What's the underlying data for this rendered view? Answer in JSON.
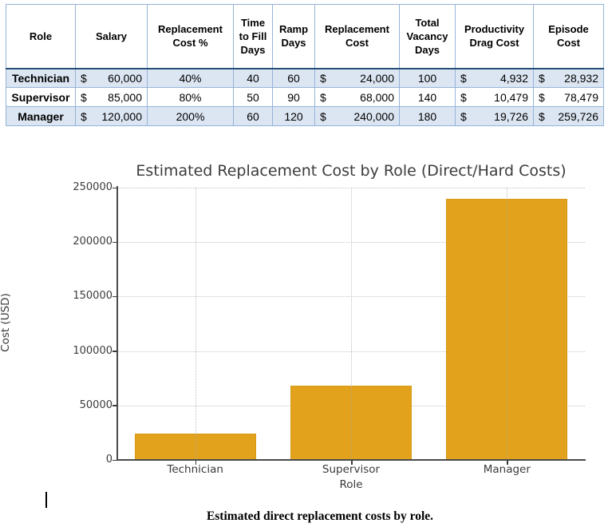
{
  "table": {
    "headers": [
      "Role",
      "Salary",
      "Replacement Cost %",
      "Time to Fill Days",
      "Ramp Days",
      "Replacement Cost",
      "Total Vacancy Days",
      "Productivity Drag Cost",
      "Episode Cost"
    ],
    "rows": [
      {
        "role": "Technician",
        "salary_sym": "$",
        "salary": "60,000",
        "pct": "40%",
        "fill_days": "40",
        "ramp_days": "60",
        "repl_sym": "$",
        "repl_cost": "24,000",
        "vacancy_days": "100",
        "drag_sym": "$",
        "drag_cost": "4,932",
        "episode_sym": "$",
        "episode_cost": "28,932"
      },
      {
        "role": "Supervisor",
        "salary_sym": "$",
        "salary": "85,000",
        "pct": "80%",
        "fill_days": "50",
        "ramp_days": "90",
        "repl_sym": "$",
        "repl_cost": "68,000",
        "vacancy_days": "140",
        "drag_sym": "$",
        "drag_cost": "10,479",
        "episode_sym": "$",
        "episode_cost": "78,479"
      },
      {
        "role": "Manager",
        "salary_sym": "$",
        "salary": "120,000",
        "pct": "200%",
        "fill_days": "60",
        "ramp_days": "120",
        "repl_sym": "$",
        "repl_cost": "240,000",
        "vacancy_days": "180",
        "drag_sym": "$",
        "drag_cost": "19,726",
        "episode_sym": "$",
        "episode_cost": "259,726"
      }
    ]
  },
  "chart_data": {
    "type": "bar",
    "categories": [
      "Technician",
      "Supervisor",
      "Manager"
    ],
    "values": [
      24000,
      68000,
      240000
    ],
    "title": "Estimated Replacement Cost by Role (Direct/Hard Costs)",
    "xlabel": "Role",
    "ylabel": "Cost (USD)",
    "ylim": [
      0,
      250000
    ],
    "yticks": [
      0,
      50000,
      100000,
      150000,
      200000,
      250000
    ],
    "grid": true,
    "legend_position": "none",
    "bar_color": "#E2A21B"
  },
  "caption": "Estimated direct replacement costs by role.",
  "colors": {
    "table_border": "#95B3D7",
    "table_header_separator": "#254E77",
    "table_row_shade": "#DCE6F2",
    "bar": "#E2A21B",
    "axis": "#4a4a4a"
  }
}
